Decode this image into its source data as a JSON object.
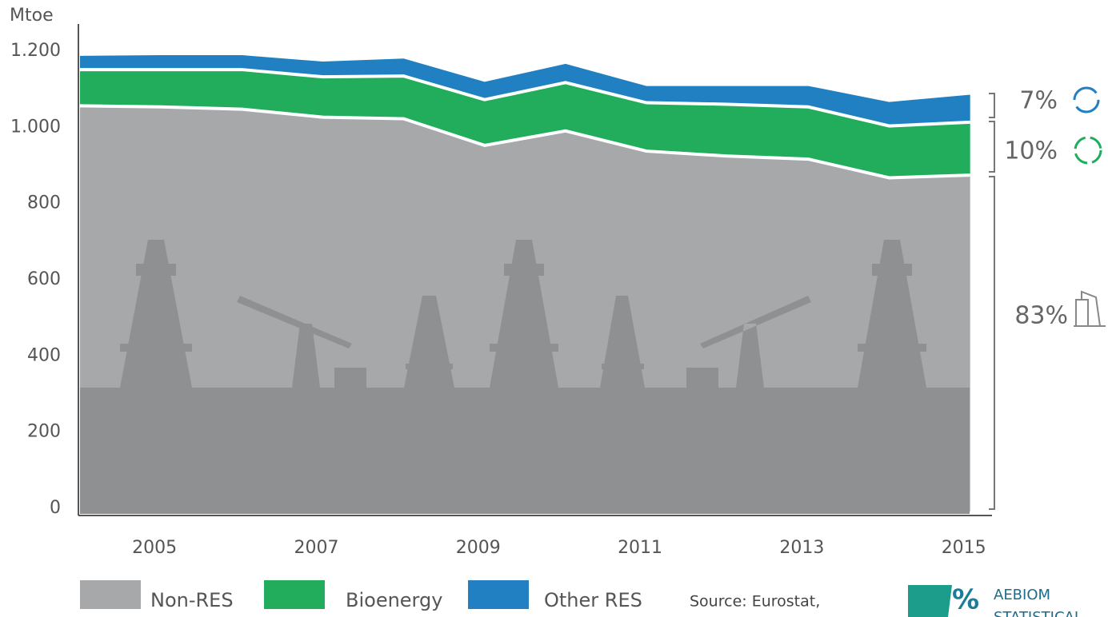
{
  "chart_data": {
    "type": "stacked_area",
    "y_label": "Mtoe",
    "x": [
      2004,
      2005,
      2006,
      2007,
      2008,
      2009,
      2010,
      2011,
      2012,
      2013,
      2014,
      2015
    ],
    "series": [
      {
        "name": "Non-RES",
        "color": "#a7a8aa",
        "values": [
          1065,
          1062,
          1056,
          1035,
          1031,
          961,
          999,
          946,
          933,
          925,
          876,
          883
        ]
      },
      {
        "name": "Bioenergy",
        "color": "#21ad5b",
        "values": [
          95,
          98,
          104,
          106,
          112,
          120,
          127,
          127,
          136,
          137,
          136,
          139
        ]
      },
      {
        "name": "Other RES",
        "color": "#2080c2",
        "values": [
          36,
          38,
          38,
          40,
          46,
          47,
          49,
          44,
          48,
          55,
          63,
          72
        ]
      }
    ],
    "xlim": [
      2004,
      2015.27
    ],
    "xticks": [
      2005,
      2007,
      2009,
      2011,
      2013,
      2015
    ],
    "ylim": [
      0,
      1200
    ],
    "yticks": [
      0,
      200,
      400,
      600,
      800,
      {
        "value": 1000,
        "label": "1.000"
      },
      {
        "value": 1200,
        "label": "1.200"
      }
    ],
    "annotations": [
      "7%",
      "10%",
      "83%"
    ],
    "source": "Source: Eurostat,",
    "logo_texts": [
      "AEBIOM",
      "STATISTICAL"
    ]
  }
}
